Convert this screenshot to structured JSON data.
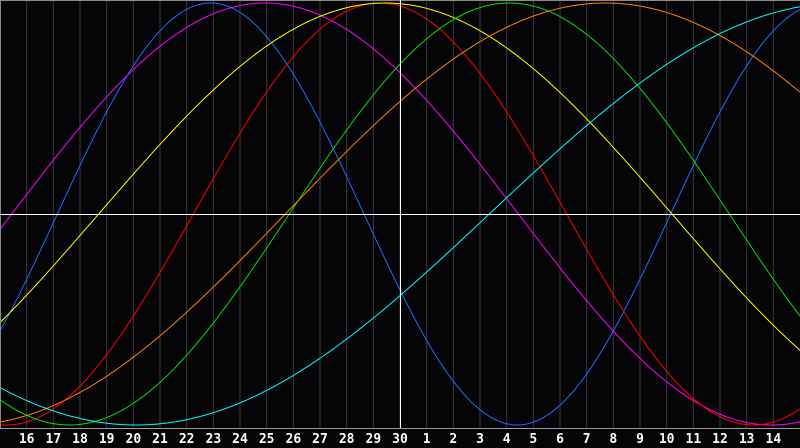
{
  "chart_data": {
    "type": "line",
    "title": "",
    "xlabel": "",
    "ylabel": "",
    "x_ticks": [
      "16",
      "17",
      "18",
      "19",
      "20",
      "21",
      "22",
      "23",
      "24",
      "25",
      "26",
      "27",
      "28",
      "29",
      "30",
      "1",
      "2",
      "3",
      "4",
      "5",
      "6",
      "7",
      "8",
      "9",
      "10",
      "11",
      "12",
      "13",
      "14"
    ],
    "marked_day": "30",
    "ylim": [
      -1,
      1
    ],
    "grid": true,
    "background": "#050508",
    "grid_color": "#3a3a3a",
    "axis_color": "#ffffff",
    "series": [
      {
        "color": "#1e6cff",
        "period_days": 23,
        "peak_offset_days": -7.1
      },
      {
        "color": "#ff00ff",
        "period_days": 38,
        "peak_offset_days": -5.06
      },
      {
        "color": "#ff0000",
        "period_days": 28,
        "peak_offset_days": -0.75
      },
      {
        "color": "#ffff00",
        "period_days": 43,
        "peak_offset_days": -0.55
      },
      {
        "color": "#00e000",
        "period_days": 33,
        "peak_offset_days": 4.1
      },
      {
        "color": "#ff8000",
        "period_days": 48,
        "peak_offset_days": 7.7
      },
      {
        "color": "#00ffff",
        "period_days": 53,
        "peak_offset_days": 16.6
      }
    ]
  }
}
